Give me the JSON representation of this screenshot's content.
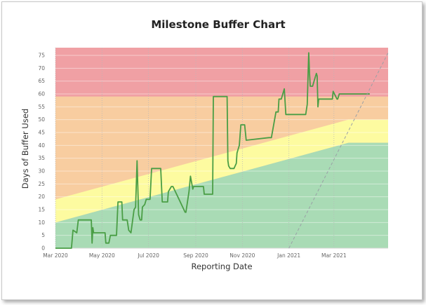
{
  "chart_data": {
    "type": "line",
    "title": "Milestone Buffer Chart",
    "xlabel": "Reporting Date",
    "ylabel": "Days of Buffer Used",
    "ylim": [
      0,
      78
    ],
    "yticks": [
      0,
      5,
      10,
      15,
      20,
      25,
      30,
      35,
      40,
      45,
      50,
      55,
      60,
      65,
      70,
      75
    ],
    "xlim": [
      "2020-03-01",
      "2021-05-11"
    ],
    "xticks": [
      {
        "date": "2020-03-01",
        "label": "Mar 2020"
      },
      {
        "date": "2020-05-01",
        "label": "May 2020"
      },
      {
        "date": "2020-07-01",
        "label": "Jul 2020"
      },
      {
        "date": "2020-09-01",
        "label": "Sep 2020"
      },
      {
        "date": "2020-11-01",
        "label": "Nov 2020"
      },
      {
        "date": "2021-01-01",
        "label": "Jan 2021"
      },
      {
        "date": "2021-03-01",
        "label": "Mar 2021"
      }
    ],
    "grid": "vertical dotted",
    "legend": "none",
    "colors": {
      "red_zone": "#f0a0a4",
      "orange_zone": "#f8cda0",
      "yellow_zone": "#fdfba0",
      "green_zone": "#a9dbb5",
      "series": "#4a9e45",
      "trend": "#9aa0a6",
      "grid": "#d9d9d9"
    },
    "zones": {
      "red": {
        "lower": 59,
        "upper": 78
      },
      "orange_upper": {
        "x": [
          "2020-03-01",
          "2021-03-20",
          "2021-05-11"
        ],
        "y": [
          19,
          50,
          50
        ]
      },
      "green_upper": {
        "x": [
          "2020-03-01",
          "2021-03-20",
          "2021-05-11"
        ],
        "y": [
          10,
          41,
          41
        ]
      }
    },
    "series": [
      {
        "x": [
          "2020-03-01",
          "2020-03-22",
          "2020-03-24",
          "2020-03-29",
          "2020-03-31",
          "2020-04-17",
          "2020-04-18",
          "2020-04-19",
          "2020-04-20",
          "2020-05-05",
          "2020-05-06",
          "2020-05-10",
          "2020-05-12",
          "2020-05-20",
          "2020-05-22",
          "2020-05-27",
          "2020-05-28",
          "2020-06-03",
          "2020-06-05",
          "2020-06-08",
          "2020-06-12",
          "2020-06-14",
          "2020-06-16",
          "2020-06-18",
          "2020-06-20",
          "2020-06-22",
          "2020-06-23",
          "2020-06-26",
          "2020-06-28",
          "2020-07-03",
          "2020-07-05",
          "2020-07-17",
          "2020-07-19",
          "2020-07-26",
          "2020-07-27",
          "2020-07-31",
          "2020-08-02",
          "2020-08-18",
          "2020-08-19",
          "2020-08-23",
          "2020-08-25",
          "2020-08-28",
          "2020-08-29",
          "2020-08-30",
          "2020-09-11",
          "2020-09-12",
          "2020-09-23",
          "2020-09-24",
          "2020-10-12",
          "2020-10-13",
          "2020-10-14",
          "2020-10-16",
          "2020-10-21",
          "2020-10-24",
          "2020-10-25",
          "2020-10-28",
          "2020-10-30",
          "2020-11-04",
          "2020-11-05",
          "2020-11-06",
          "2020-12-06",
          "2020-12-09",
          "2020-12-15",
          "2020-12-18",
          "2020-12-19",
          "2020-12-22",
          "2020-12-26",
          "2020-12-28",
          "2020-12-30",
          "2021-01-23",
          "2021-01-25",
          "2021-01-26",
          "2021-01-27",
          "2021-01-28",
          "2021-01-29",
          "2021-02-01",
          "2021-02-04",
          "2021-02-06",
          "2021-02-07",
          "2021-02-08",
          "2021-02-09",
          "2021-02-11",
          "2021-02-25",
          "2021-02-27",
          "2021-02-28",
          "2021-03-05",
          "2021-03-06",
          "2021-03-08",
          "2021-03-13",
          "2021-03-15",
          "2021-04-17"
        ],
        "y": [
          0,
          0,
          7,
          6,
          11,
          11,
          2,
          8,
          6,
          6,
          2,
          2,
          5,
          5,
          18,
          18,
          11,
          11,
          7,
          6,
          15,
          16,
          34,
          13,
          11,
          11,
          16,
          17,
          19,
          19,
          31,
          31,
          18,
          18,
          22,
          24,
          24,
          14,
          14,
          22,
          28,
          23,
          24,
          24,
          24,
          21,
          21,
          59,
          59,
          34,
          32,
          31,
          31,
          33,
          37,
          40,
          48,
          48,
          45,
          42,
          43,
          43,
          53,
          53,
          58,
          58,
          62,
          52,
          52,
          52,
          56,
          66,
          76,
          68,
          63,
          63,
          66,
          68,
          67,
          55,
          58,
          58,
          58,
          58,
          61,
          58,
          58,
          60,
          60,
          60,
          60
        ]
      }
    ],
    "trend_line": {
      "x": [
        "2021-01-01",
        "2021-05-11"
      ],
      "y": [
        0,
        76
      ]
    }
  }
}
